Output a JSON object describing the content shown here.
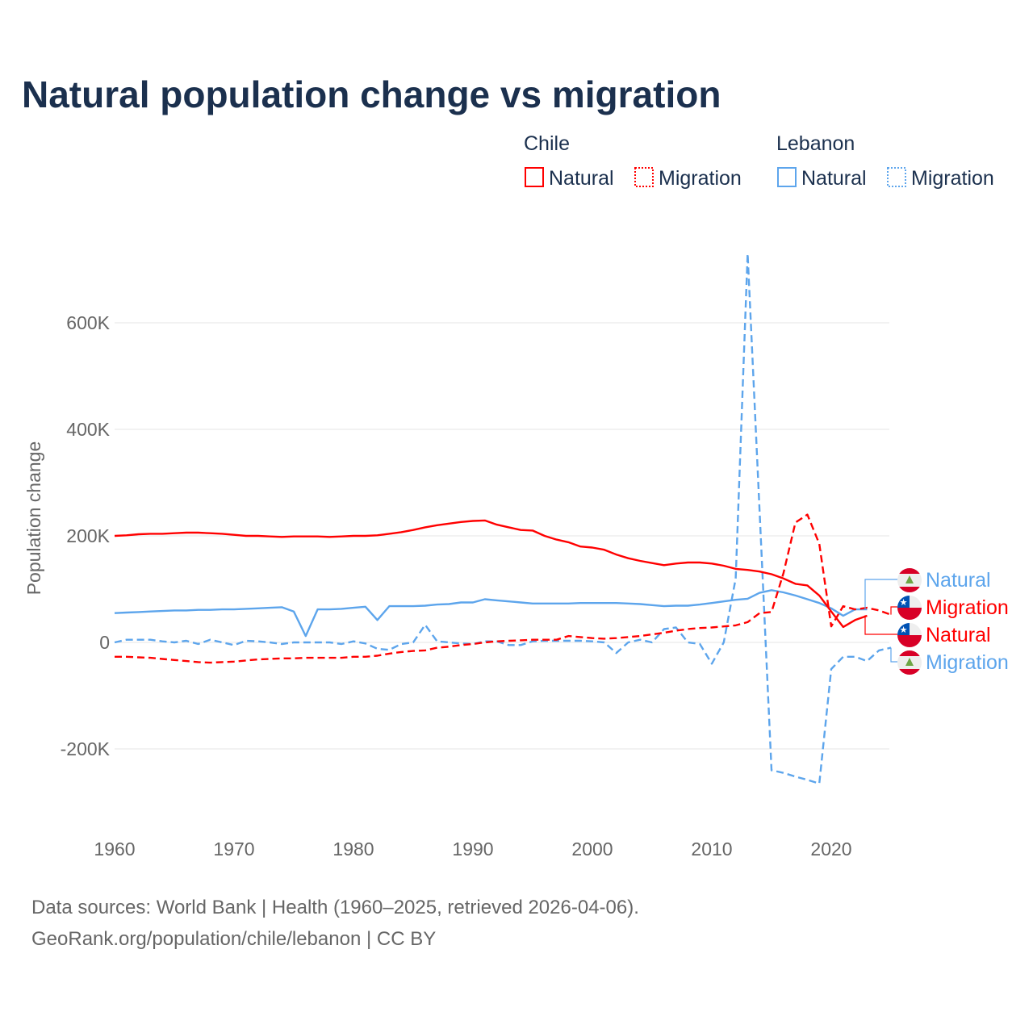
{
  "chart_data": {
    "type": "line",
    "title": "Natural population change vs migration",
    "xlabel": "",
    "ylabel": "Population change",
    "xlim": [
      1960,
      2025
    ],
    "ylim": [
      -300000,
      740000
    ],
    "x_ticks": [
      "1960",
      "1970",
      "1980",
      "1990",
      "2000",
      "2010",
      "2020"
    ],
    "y_ticks": [
      {
        "value": 600000,
        "label": "600K"
      },
      {
        "value": 400000,
        "label": "400K"
      },
      {
        "value": 200000,
        "label": "200K"
      },
      {
        "value": 0,
        "label": "0"
      },
      {
        "value": -200000,
        "label": "-200K"
      }
    ],
    "grid": true,
    "legend": {
      "placement": "top-right",
      "groups": [
        {
          "country": "Chile",
          "items": [
            "Natural",
            "Migration"
          ]
        },
        {
          "country": "Lebanon",
          "items": [
            "Natural",
            "Migration"
          ]
        }
      ]
    },
    "units": "thousands",
    "series": [
      {
        "name": "Chile Natural",
        "country": "Chile",
        "kind": "Natural",
        "color": "#ff0000",
        "dashed": false,
        "start_year": 1960,
        "values": [
          200,
          201,
          203,
          204,
          204,
          205,
          206,
          206,
          205,
          204,
          202,
          200,
          200,
          199,
          198,
          199,
          199,
          199,
          198,
          199,
          200,
          200,
          201,
          204,
          207,
          211,
          216,
          220,
          223,
          226,
          228,
          229,
          221,
          216,
          211,
          210,
          200,
          193,
          188,
          180,
          178,
          174,
          165,
          158,
          153,
          149,
          145,
          148,
          150,
          150,
          148,
          144,
          138,
          136,
          133,
          128,
          120,
          110,
          107,
          88,
          58,
          29,
          42,
          50
        ]
      },
      {
        "name": "Chile Migration",
        "country": "Chile",
        "kind": "Migration",
        "color": "#ff0000",
        "dashed": true,
        "start_year": 1960,
        "values": [
          -27,
          -27,
          -28,
          -29,
          -31,
          -33,
          -35,
          -37,
          -38,
          -37,
          -36,
          -34,
          -32,
          -31,
          -30,
          -30,
          -29,
          -29,
          -29,
          -29,
          -27,
          -27,
          -25,
          -21,
          -18,
          -16,
          -15,
          -10,
          -8,
          -5,
          -3,
          0,
          2,
          3,
          4,
          5,
          5,
          5,
          12,
          10,
          8,
          7,
          8,
          10,
          12,
          15,
          18,
          22,
          25,
          27,
          28,
          30,
          32,
          38,
          55,
          57,
          130,
          225,
          240,
          185,
          30,
          68,
          62,
          65,
          60,
          52
        ]
      },
      {
        "name": "Lebanon Natural",
        "country": "Lebanon",
        "kind": "Natural",
        "color": "#5da5ec",
        "dashed": false,
        "start_year": 1960,
        "values": [
          55,
          56,
          57,
          58,
          59,
          60,
          60,
          61,
          61,
          62,
          62,
          63,
          64,
          65,
          66,
          58,
          12,
          62,
          62,
          63,
          65,
          67,
          42,
          68,
          68,
          68,
          69,
          71,
          72,
          75,
          75,
          81,
          79,
          77,
          75,
          73,
          73,
          73,
          73,
          74,
          74,
          74,
          74,
          73,
          72,
          70,
          68,
          69,
          69,
          71,
          74,
          77,
          80,
          82,
          93,
          98,
          94,
          88,
          81,
          74,
          64,
          50,
          62,
          62
        ]
      },
      {
        "name": "Lebanon Migration",
        "country": "Lebanon",
        "kind": "Migration",
        "color": "#5da5ec",
        "dashed": true,
        "start_year": 1960,
        "values": [
          0,
          5,
          5,
          5,
          2,
          0,
          3,
          -3,
          5,
          0,
          -5,
          3,
          2,
          0,
          -3,
          0,
          0,
          0,
          0,
          -3,
          2,
          -2,
          -12,
          -14,
          -3,
          0,
          33,
          2,
          0,
          -2,
          -3,
          2,
          2,
          -5,
          -5,
          2,
          3,
          3,
          3,
          3,
          2,
          0,
          -20,
          0,
          5,
          0,
          25,
          28,
          0,
          -3,
          -40,
          0,
          120,
          730,
          247,
          -240,
          -245,
          -252,
          -258,
          -265,
          -50,
          -27,
          -27,
          -35,
          -15,
          -10
        ]
      }
    ],
    "end_labels": [
      {
        "text": "Natural",
        "country": "Lebanon",
        "series": 2
      },
      {
        "text": "Migration",
        "country": "Chile",
        "series": 1
      },
      {
        "text": "Natural",
        "country": "Chile",
        "series": 0
      },
      {
        "text": "Migration",
        "country": "Lebanon",
        "series": 3
      }
    ]
  },
  "footer": {
    "line1": "Data sources: World Bank | Health (1960–2025, retrieved 2026-04-06).",
    "line2": "GeoRank.org/population/chile/lebanon | CC BY"
  }
}
